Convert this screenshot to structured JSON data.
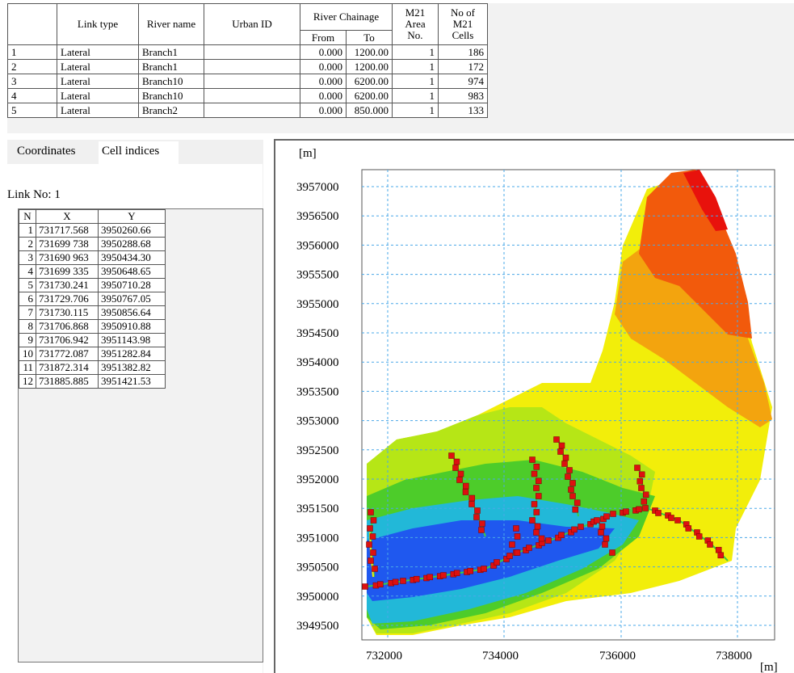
{
  "link_table": {
    "headers": {
      "link_type": "Link type",
      "river_name": "River name",
      "urban_id": "Urban ID",
      "river_chainage": "River Chainage",
      "from": "From",
      "to": "To",
      "m21_area_no": [
        "M21",
        "Area",
        "No."
      ],
      "no_of_m21_cells": [
        "No of",
        "M21",
        "Cells"
      ]
    },
    "rows": [
      {
        "index": "1",
        "link_type": "Lateral",
        "river_name": "Branch1",
        "urban_id": "",
        "from": "0.000",
        "to": "1200.00",
        "area": "1",
        "cells": "186"
      },
      {
        "index": "2",
        "link_type": "Lateral",
        "river_name": "Branch1",
        "urban_id": "",
        "from": "0.000",
        "to": "1200.00",
        "area": "1",
        "cells": "172"
      },
      {
        "index": "3",
        "link_type": "Lateral",
        "river_name": "Branch10",
        "urban_id": "",
        "from": "0.000",
        "to": "6200.00",
        "area": "1",
        "cells": "974"
      },
      {
        "index": "4",
        "link_type": "Lateral",
        "river_name": "Branch10",
        "urban_id": "",
        "from": "0.000",
        "to": "6200.00",
        "area": "1",
        "cells": "983"
      },
      {
        "index": "5",
        "link_type": "Lateral",
        "river_name": "Branch2",
        "urban_id": "",
        "from": "0.000",
        "to": "850.000",
        "area": "1",
        "cells": "133"
      }
    ]
  },
  "tabs": {
    "coordinates": "Coordinates",
    "cell_indices": "Cell indices"
  },
  "link_no_label": "Link No: 1",
  "coord_table": {
    "headers": {
      "n": "N",
      "x": "X",
      "y": "Y"
    },
    "rows": [
      {
        "n": "1",
        "x": "731717.568",
        "y": "3950260.66"
      },
      {
        "n": "2",
        "x": "731699 738",
        "y": "3950288.68"
      },
      {
        "n": "3",
        "x": "731690 963",
        "y": "3950434.30"
      },
      {
        "n": "4",
        "x": "731699 335",
        "y": "3950648.65"
      },
      {
        "n": "5",
        "x": "731730.241",
        "y": "3950710.28"
      },
      {
        "n": "6",
        "x": "731729.706",
        "y": "3950767.05"
      },
      {
        "n": "7",
        "x": "731730.115",
        "y": "3950856.64"
      },
      {
        "n": "8",
        "x": "731706.868",
        "y": "3950910.88"
      },
      {
        "n": "9",
        "x": "731706.942",
        "y": "3951143.98"
      },
      {
        "n": "10",
        "x": "731772.087",
        "y": "3951282.84"
      },
      {
        "n": "11",
        "x": "731872.314",
        "y": "3951382.82"
      },
      {
        "n": "12",
        "x": "731885.885",
        "y": "3951421.53"
      }
    ]
  },
  "map": {
    "y_unit": "[m]",
    "x_unit": "[m]",
    "y_ticks": [
      "3957000",
      "3956500",
      "3956000",
      "3955500",
      "3955000",
      "3954500",
      "3954000",
      "3953500",
      "3953000",
      "3952500",
      "3952000",
      "3951500",
      "3951000",
      "3950500",
      "3950000",
      "3949500"
    ],
    "x_ticks": [
      "732000",
      "734000",
      "736000",
      "738000"
    ],
    "grid": true,
    "colors": {
      "red": "#e8120c",
      "orange_red": "#f24e0a",
      "orange": "#f49a0c",
      "yellow": "#f2f20a",
      "yellow_green": "#b8e614",
      "green": "#4ccc2a",
      "blue": "#1e5cf0",
      "cell_marker": "#dd1010",
      "grid_line": "#4aa8e8"
    }
  }
}
